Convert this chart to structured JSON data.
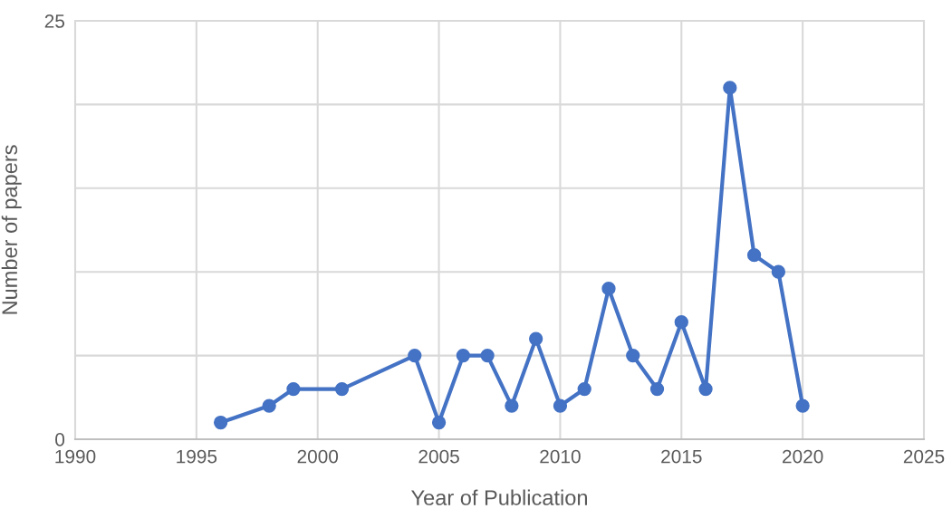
{
  "chart_data": {
    "type": "line",
    "xlabel": "Year of Publication",
    "ylabel": "Number of papers",
    "x": [
      1996,
      1998,
      1999,
      2001,
      2004,
      2005,
      2006,
      2007,
      2008,
      2009,
      2010,
      2011,
      2012,
      2013,
      2014,
      2015,
      2016,
      2017,
      2018,
      2019,
      2020
    ],
    "series": [
      {
        "color": "#4472c4",
        "values": [
          1,
          2,
          3,
          3,
          5,
          1,
          5,
          5,
          2,
          6,
          2,
          3,
          9,
          5,
          3,
          7,
          3,
          21,
          11,
          10,
          2
        ]
      }
    ],
    "xlim": [
      1990,
      2025
    ],
    "xticks": [
      1990,
      1995,
      2000,
      2005,
      2010,
      2015,
      2020,
      2025
    ],
    "ylim": [
      0,
      25
    ],
    "yticks": [
      0,
      {
        "value": 5,
        "label": null
      },
      {
        "value": 10,
        "label": null
      },
      {
        "value": 15,
        "label": null
      },
      {
        "value": 20,
        "label": null
      },
      25
    ],
    "grid": true,
    "marker": "circle",
    "line_style": "solid"
  }
}
